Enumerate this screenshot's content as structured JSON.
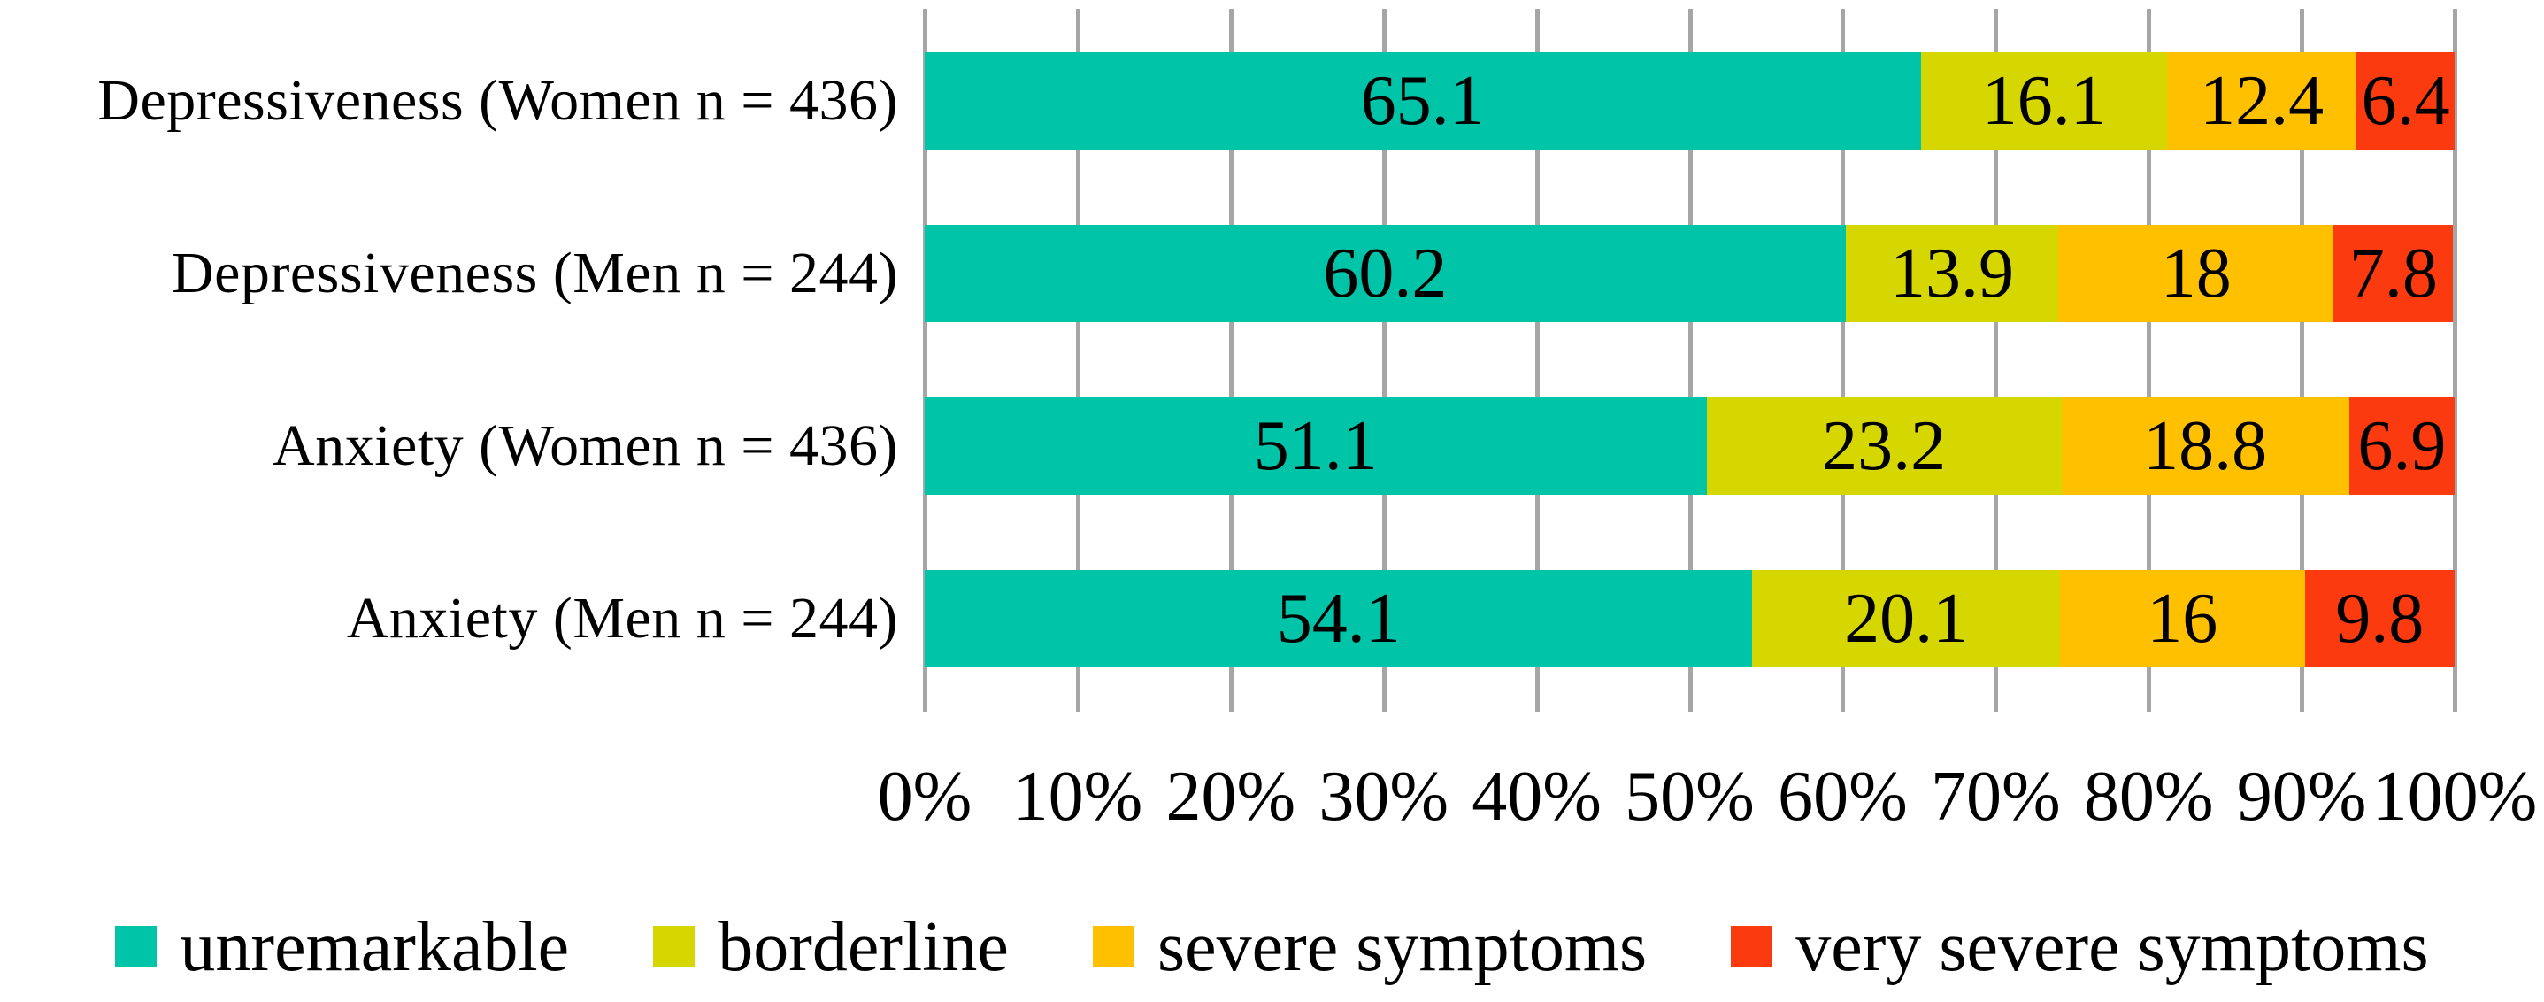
{
  "chart_data": {
    "type": "bar",
    "orientation": "horizontal",
    "stacked": true,
    "unit": "%",
    "title": "",
    "xlabel": "",
    "ylabel": "",
    "xlim": [
      0,
      100
    ],
    "grid": "vertical",
    "grid_color": "#A6A6A6",
    "legend_position": "bottom",
    "categories": [
      "Depressiveness (Women n = 436)",
      "Depressiveness (Men n = 244)",
      "Anxiety (Women n = 436)",
      "Anxiety (Men n = 244)"
    ],
    "series": [
      {
        "name": "unremarkable",
        "color": "#00C4A7",
        "values": [
          65.1,
          60.2,
          51.1,
          54.1
        ],
        "value_labels": [
          "65.1",
          "60.2",
          "51.1",
          "54.1"
        ]
      },
      {
        "name": "borderline",
        "color": "#D6D600",
        "values": [
          16.1,
          13.9,
          23.2,
          20.1
        ],
        "value_labels": [
          "16.1",
          "13.9",
          "23.2",
          "20.1"
        ]
      },
      {
        "name": "severe symptoms",
        "color": "#FFC000",
        "values": [
          12.4,
          18,
          18.8,
          16
        ],
        "value_labels": [
          "12.4",
          "18",
          "18.8",
          "16"
        ]
      },
      {
        "name": "very severe symptoms",
        "color": "#FB3A10",
        "values": [
          6.4,
          7.8,
          6.9,
          9.8
        ],
        "value_labels": [
          "6.4",
          "7.8",
          "6.9",
          "9.8"
        ]
      }
    ],
    "x_tick_labels": [
      "0%",
      "10%",
      "20%",
      "30%",
      "40%",
      "50%",
      "60%",
      "70%",
      "80%",
      "90%",
      "100%"
    ]
  }
}
